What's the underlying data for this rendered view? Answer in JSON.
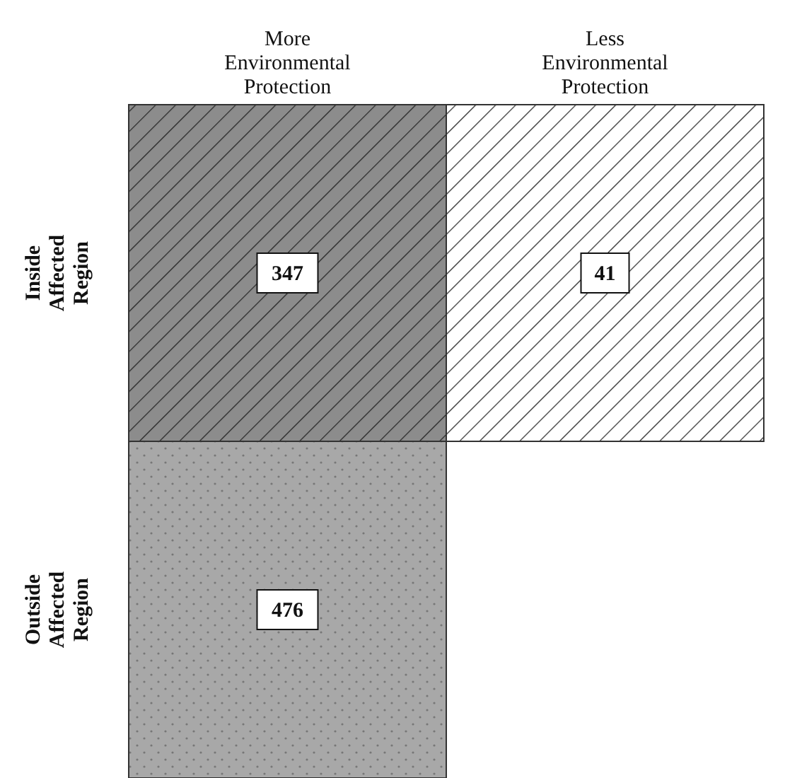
{
  "chart_data": {
    "type": "heatmap",
    "categories": [
      "More Environmental Protection",
      "Less Environmental Protection"
    ],
    "y_categories": [
      "Inside Affected Region",
      "Outside Affected Region"
    ],
    "cells": [
      [
        347,
        41
      ],
      [
        476,
        null
      ]
    ],
    "colors": [
      [
        "#8c8c8c",
        "#ffffff"
      ],
      [
        "#a8a8a8",
        null
      ]
    ],
    "data_labels": true
  }
}
